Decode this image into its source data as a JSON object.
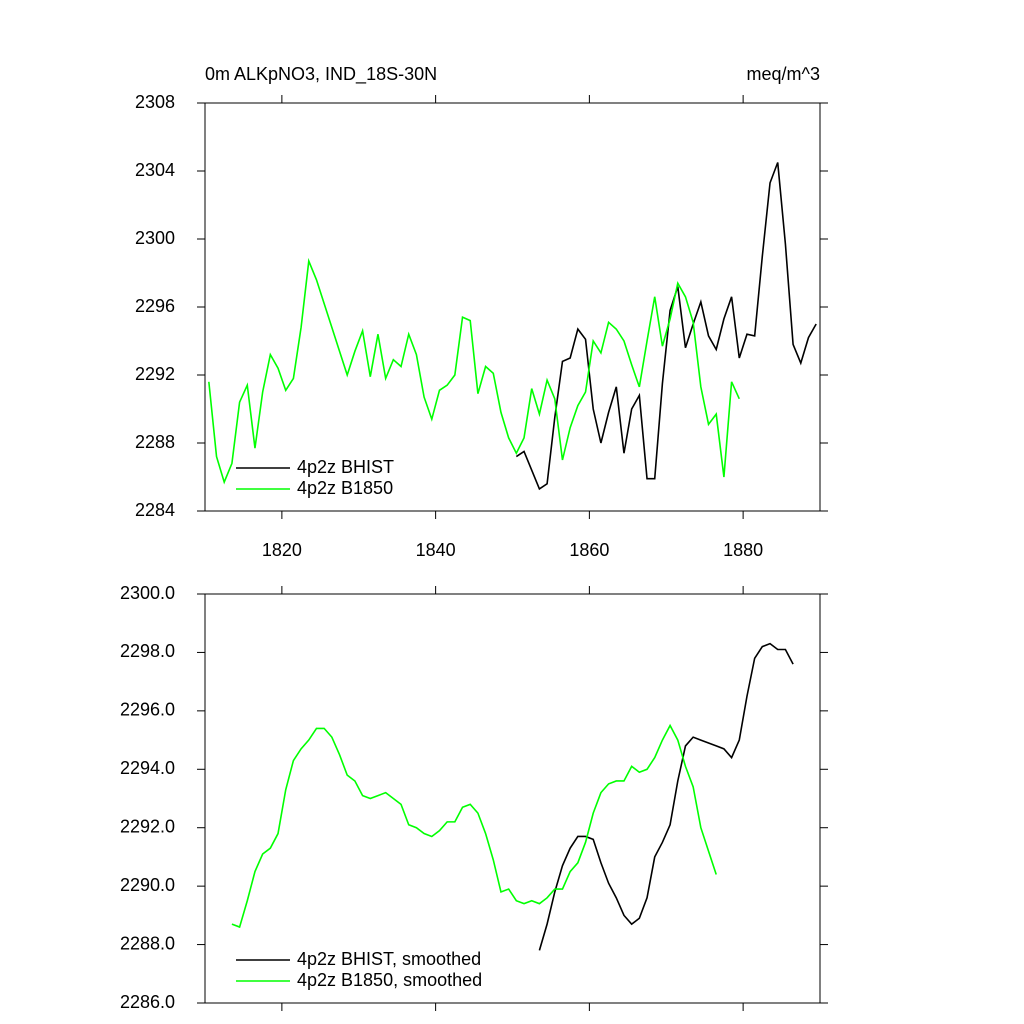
{
  "chart_data": [
    {
      "type": "line",
      "title": "0m ALKpNO3, IND_18S-30N",
      "units": "meq/m^3",
      "xlim": [
        1810,
        1890
      ],
      "xticks": [
        1820,
        1840,
        1860,
        1880
      ],
      "show_xtick_labels": true,
      "ylim": [
        2284,
        2308
      ],
      "yticks": [
        2284,
        2288,
        2292,
        2296,
        2300,
        2304,
        2308
      ],
      "legend": "lower left",
      "series": [
        {
          "name": "4p2z BHIST",
          "color": "#000000",
          "x": [
            1850.5,
            1851.5,
            1852.5,
            1853.5,
            1854.5,
            1855.5,
            1856.5,
            1857.5,
            1858.5,
            1859.5,
            1860.5,
            1861.5,
            1862.5,
            1863.5,
            1864.5,
            1865.5,
            1866.5,
            1867.5,
            1868.5,
            1869.5,
            1870.5,
            1871.5,
            1872.5,
            1873.5,
            1874.5,
            1875.5,
            1876.5,
            1877.5,
            1878.5,
            1879.5,
            1880.5,
            1881.5,
            1882.5,
            1883.5,
            1884.5,
            1885.5,
            1886.5,
            1887.5,
            1888.5,
            1889.5
          ],
          "values": [
            2287.2,
            2287.5,
            2286.4,
            2285.3,
            2285.6,
            2289.5,
            2292.8,
            2293.0,
            2294.7,
            2294.1,
            2290.0,
            2288.0,
            2289.8,
            2291.3,
            2287.4,
            2290.0,
            2290.8,
            2285.9,
            2285.9,
            2291.5,
            2295.8,
            2297.2,
            2293.6,
            2295.0,
            2296.3,
            2294.3,
            2293.5,
            2295.3,
            2296.6,
            2293.0,
            2294.4,
            2294.3,
            2299.0,
            2303.3,
            2304.5,
            2299.7,
            2293.8,
            2292.7,
            2294.2,
            2295.0
          ]
        },
        {
          "name": "4p2z B1850",
          "color": "#00ff00",
          "x": [
            1810.5,
            1811.5,
            1812.5,
            1813.5,
            1814.5,
            1815.5,
            1816.5,
            1817.5,
            1818.5,
            1819.5,
            1820.5,
            1821.5,
            1822.5,
            1823.5,
            1824.5,
            1825.5,
            1826.5,
            1827.5,
            1828.5,
            1829.5,
            1830.5,
            1831.5,
            1832.5,
            1833.5,
            1834.5,
            1835.5,
            1836.5,
            1837.5,
            1838.5,
            1839.5,
            1840.5,
            1841.5,
            1842.5,
            1843.5,
            1844.5,
            1845.5,
            1846.5,
            1847.5,
            1848.5,
            1849.5,
            1850.5,
            1851.5,
            1852.5,
            1853.5,
            1854.5,
            1855.5,
            1856.5,
            1857.5,
            1858.5,
            1859.5,
            1860.5,
            1861.5,
            1862.5,
            1863.5,
            1864.5,
            1865.5,
            1866.5,
            1867.5,
            1868.5,
            1869.5,
            1870.5,
            1871.5,
            1872.5,
            1873.5,
            1874.5,
            1875.5,
            1876.5,
            1877.5,
            1878.5,
            1879.5
          ],
          "values": [
            2291.6,
            2287.2,
            2285.7,
            2286.8,
            2290.4,
            2291.4,
            2287.7,
            2291.0,
            2293.2,
            2292.4,
            2291.1,
            2291.8,
            2294.8,
            2298.7,
            2297.6,
            2296.2,
            2294.8,
            2293.4,
            2292.0,
            2293.4,
            2294.6,
            2291.9,
            2294.4,
            2291.8,
            2292.9,
            2292.5,
            2294.4,
            2293.2,
            2290.7,
            2289.4,
            2291.1,
            2291.4,
            2292.0,
            2295.4,
            2295.2,
            2290.9,
            2292.5,
            2292.1,
            2289.8,
            2288.3,
            2287.4,
            2288.3,
            2291.2,
            2289.7,
            2291.7,
            2290.6,
            2287.0,
            2288.9,
            2290.2,
            2291.0,
            2294.0,
            2293.3,
            2295.1,
            2294.7,
            2294.0,
            2292.6,
            2291.3,
            2294.0,
            2296.6,
            2293.7,
            2295.3,
            2297.4,
            2296.6,
            2295.1,
            2291.3,
            2289.1,
            2289.7,
            2286.0,
            2291.6,
            2290.6
          ]
        }
      ]
    },
    {
      "type": "line",
      "xlim": [
        1810,
        1890
      ],
      "xticks": [
        1820,
        1840,
        1860,
        1880
      ],
      "show_xtick_labels": false,
      "ylim": [
        2286,
        2300
      ],
      "yticks": [
        {
          "value": 2286,
          "label": "2286.0"
        },
        {
          "value": 2288,
          "label": "2288.0"
        },
        {
          "value": 2290,
          "label": "2290.0"
        },
        {
          "value": 2292,
          "label": "2292.0"
        },
        {
          "value": 2294,
          "label": "2294.0"
        },
        {
          "value": 2296,
          "label": "2296.0"
        },
        {
          "value": 2298,
          "label": "2298.0"
        },
        {
          "value": 2300,
          "label": "2300.0"
        }
      ],
      "legend": "lower left",
      "series": [
        {
          "name": "4p2z BHIST, smoothed",
          "color": "#000000",
          "x": [
            1853.5,
            1854.5,
            1855.5,
            1856.5,
            1857.5,
            1858.5,
            1859.5,
            1860.5,
            1861.5,
            1862.5,
            1863.5,
            1864.5,
            1865.5,
            1866.5,
            1867.5,
            1868.5,
            1869.5,
            1870.5,
            1871.5,
            1872.5,
            1873.5,
            1874.5,
            1875.5,
            1876.5,
            1877.5,
            1878.5,
            1879.5,
            1880.5,
            1881.5,
            1882.5,
            1883.5,
            1884.5,
            1885.5,
            1886.5
          ],
          "values": [
            2287.8,
            2288.7,
            2289.8,
            2290.7,
            2291.3,
            2291.7,
            2291.7,
            2291.6,
            2290.8,
            2290.1,
            2289.6,
            2289.0,
            2288.7,
            2288.9,
            2289.6,
            2291.0,
            2291.5,
            2292.1,
            2293.6,
            2294.8,
            2295.1,
            2295.0,
            2294.9,
            2294.8,
            2294.7,
            2294.4,
            2295.0,
            2296.5,
            2297.8,
            2298.2,
            2298.3,
            2298.1,
            2298.1,
            2297.6
          ]
        },
        {
          "name": "4p2z B1850, smoothed",
          "color": "#00ff00",
          "x": [
            1813.5,
            1814.5,
            1815.5,
            1816.5,
            1817.5,
            1818.5,
            1819.5,
            1820.5,
            1821.5,
            1822.5,
            1823.5,
            1824.5,
            1825.5,
            1826.5,
            1827.5,
            1828.5,
            1829.5,
            1830.5,
            1831.5,
            1832.5,
            1833.5,
            1834.5,
            1835.5,
            1836.5,
            1837.5,
            1838.5,
            1839.5,
            1840.5,
            1841.5,
            1842.5,
            1843.5,
            1844.5,
            1845.5,
            1846.5,
            1847.5,
            1848.5,
            1849.5,
            1850.5,
            1851.5,
            1852.5,
            1853.5,
            1854.5,
            1855.5,
            1856.5,
            1857.5,
            1858.5,
            1859.5,
            1860.5,
            1861.5,
            1862.5,
            1863.5,
            1864.5,
            1865.5,
            1866.5,
            1867.5,
            1868.5,
            1869.5,
            1870.5,
            1871.5,
            1872.5,
            1873.5,
            1874.5,
            1875.5,
            1876.5
          ],
          "values": [
            2288.7,
            2288.6,
            2289.5,
            2290.5,
            2291.1,
            2291.3,
            2291.8,
            2293.3,
            2294.3,
            2294.7,
            2295.0,
            2295.4,
            2295.4,
            2295.1,
            2294.5,
            2293.8,
            2293.6,
            2293.1,
            2293.0,
            2293.1,
            2293.2,
            2293.0,
            2292.8,
            2292.1,
            2292.0,
            2291.8,
            2291.7,
            2291.9,
            2292.2,
            2292.2,
            2292.7,
            2292.8,
            2292.5,
            2291.8,
            2290.9,
            2289.8,
            2289.9,
            2289.5,
            2289.4,
            2289.5,
            2289.4,
            2289.6,
            2289.9,
            2289.9,
            2290.5,
            2290.8,
            2291.5,
            2292.5,
            2293.2,
            2293.5,
            2293.6,
            2293.6,
            2294.1,
            2293.9,
            2294.0,
            2294.4,
            2295.0,
            2295.5,
            2295.0,
            2294.1,
            2293.4,
            2292.0,
            2291.2,
            2290.4
          ]
        }
      ]
    }
  ]
}
